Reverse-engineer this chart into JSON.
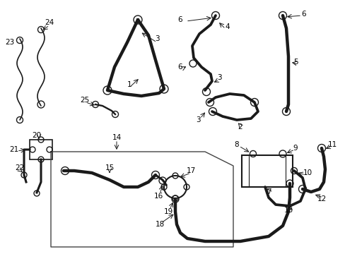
{
  "background_color": "#ffffff",
  "line_color": "#1a1a1a",
  "label_color": "#000000",
  "figsize": [
    4.89,
    3.6
  ],
  "dpi": 100,
  "lw_thick": 2.2,
  "lw_thin": 1.2
}
